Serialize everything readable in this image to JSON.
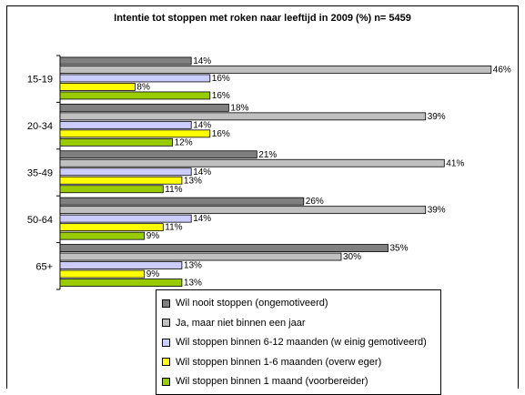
{
  "chart_data": {
    "type": "bar",
    "orientation": "horizontal",
    "title": "Intentie tot stoppen met roken naar leeftijd in 2009 (%)  n= 5459",
    "categories": [
      "15-19",
      "20-34",
      "35-49",
      "50-64",
      "65+"
    ],
    "value_suffix": "%",
    "xlim": [
      0,
      50
    ],
    "grid": false,
    "legend_position": "bottom",
    "series": [
      {
        "name": "Wil nooit stoppen (ongemotiveerd)",
        "color": "#808080",
        "values": [
          14,
          18,
          21,
          26,
          35
        ]
      },
      {
        "name": "Ja, maar niet binnen een jaar",
        "color": "#c0c0c0",
        "values": [
          46,
          39,
          41,
          39,
          30
        ]
      },
      {
        "name": "Wil stoppen binnen 6-12 maanden (w einig gemotiveerd)",
        "color": "#ccccff",
        "values": [
          16,
          14,
          14,
          14,
          13
        ]
      },
      {
        "name": "Wil stoppen binnen 1-6 maanden (overw eger)",
        "color": "#ffff00",
        "values": [
          8,
          16,
          13,
          11,
          9
        ]
      },
      {
        "name": "Wil stoppen binnen 1 maand (voorbereider)",
        "color": "#99cc00",
        "values": [
          16,
          12,
          11,
          9,
          13
        ]
      }
    ]
  }
}
